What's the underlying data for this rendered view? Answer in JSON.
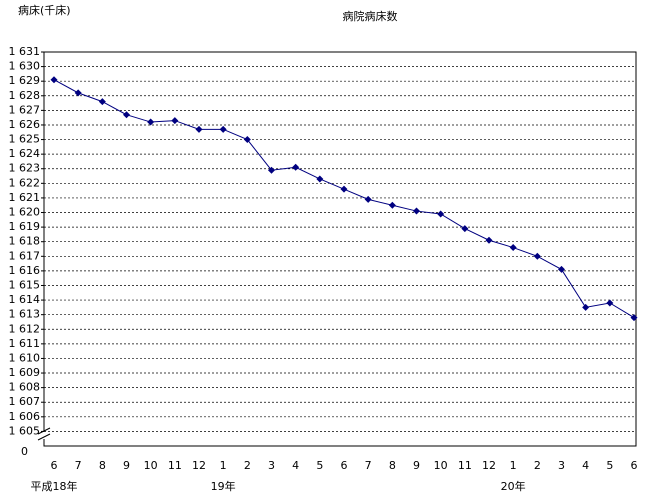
{
  "chart_data": {
    "type": "line",
    "title": "病院病床数",
    "y_label": "病床(千床)",
    "categories": [
      "6",
      "7",
      "8",
      "9",
      "10",
      "11",
      "12",
      "1",
      "2",
      "3",
      "4",
      "5",
      "6",
      "7",
      "8",
      "9",
      "10",
      "11",
      "12",
      "1",
      "2",
      "3",
      "4",
      "5",
      "6"
    ],
    "x_groups": [
      {
        "label": "平成18年",
        "start": 0
      },
      {
        "label": "19年",
        "start": 7
      },
      {
        "label": "20年",
        "start": 19
      }
    ],
    "series": [
      {
        "name": "病院病床数",
        "color": "#000080",
        "values": [
          1629.1,
          1628.2,
          1627.6,
          1626.7,
          1626.2,
          1626.3,
          1625.7,
          1625.7,
          1625.0,
          1622.9,
          1623.1,
          1622.3,
          1621.6,
          1620.9,
          1620.5,
          1620.1,
          1619.9,
          1618.9,
          1618.1,
          1617.6,
          1617.0,
          1616.1,
          1613.5,
          1613.8,
          1612.8
        ]
      }
    ],
    "ylim": [
      1604,
      1631
    ],
    "yticks": [
      {
        "value": 1605,
        "label": "1 605"
      },
      {
        "value": 1606,
        "label": "1 606"
      },
      {
        "value": 1607,
        "label": "1 607"
      },
      {
        "value": 1608,
        "label": "1 608"
      },
      {
        "value": 1609,
        "label": "1 609"
      },
      {
        "value": 1610,
        "label": "1 610"
      },
      {
        "value": 1611,
        "label": "1 611"
      },
      {
        "value": 1612,
        "label": "1 612"
      },
      {
        "value": 1613,
        "label": "1 613"
      },
      {
        "value": 1614,
        "label": "1 614"
      },
      {
        "value": 1615,
        "label": "1 615"
      },
      {
        "value": 1616,
        "label": "1 616"
      },
      {
        "value": 1617,
        "label": "1 617"
      },
      {
        "value": 1618,
        "label": "1 618"
      },
      {
        "value": 1619,
        "label": "1 619"
      },
      {
        "value": 1620,
        "label": "1 620"
      },
      {
        "value": 1621,
        "label": "1 621"
      },
      {
        "value": 1622,
        "label": "1 622"
      },
      {
        "value": 1623,
        "label": "1 623"
      },
      {
        "value": 1624,
        "label": "1 624"
      },
      {
        "value": 1625,
        "label": "1 625"
      },
      {
        "value": 1626,
        "label": "1 626"
      },
      {
        "value": 1627,
        "label": "1 627"
      },
      {
        "value": 1628,
        "label": "1 628"
      },
      {
        "value": 1629,
        "label": "1 629"
      },
      {
        "value": 1630,
        "label": "1 630"
      },
      {
        "value": 1631,
        "label": "1 631"
      }
    ],
    "y_break_label": "0",
    "grid": true
  }
}
